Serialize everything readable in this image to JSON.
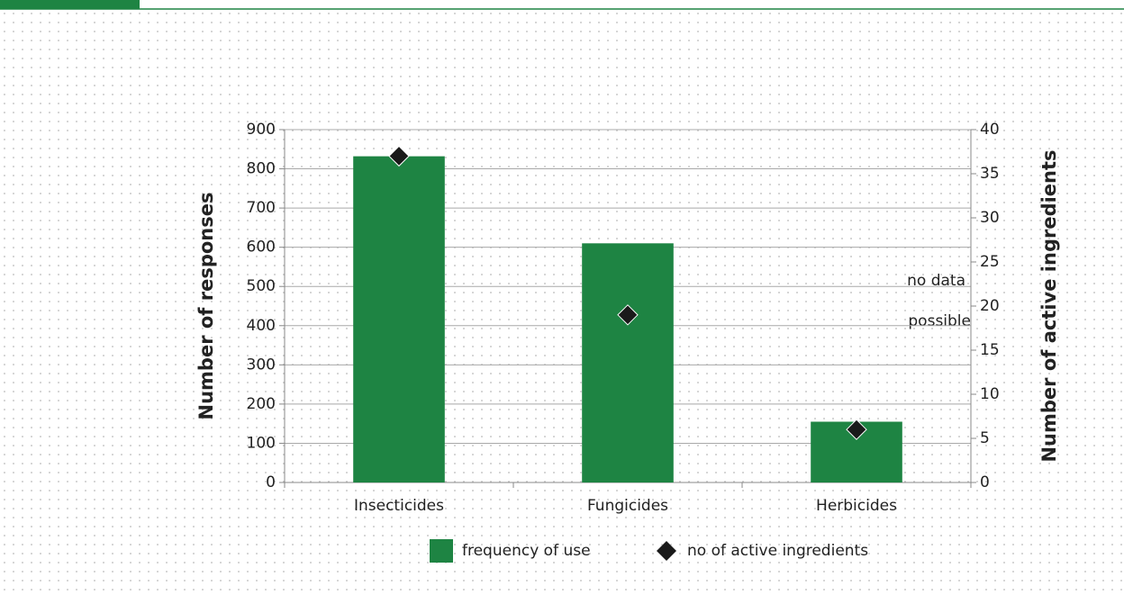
{
  "chart_data": {
    "type": "bar",
    "categories": [
      "Insecticides",
      "Fungicides",
      "Herbicides"
    ],
    "series": [
      {
        "name": "frequency of use",
        "color": "#1e8443",
        "values": [
          832,
          610,
          155
        ]
      },
      {
        "name": "no of active ingredients",
        "color": "#1a1a1a",
        "values": [
          37,
          19,
          6
        ],
        "axis": "y2",
        "type": "scatter"
      }
    ],
    "ylabel": "Number of responses",
    "y2label": "Number of active ingredients",
    "ylim": [
      0,
      900
    ],
    "yticks": [
      0,
      100,
      200,
      300,
      400,
      500,
      600,
      700,
      800,
      900
    ],
    "y2lim": [
      0,
      40
    ],
    "y2ticks": [
      0,
      5,
      10,
      15,
      20,
      25,
      30,
      35,
      40
    ],
    "annotations": [
      "no data",
      "possible"
    ],
    "grid": true,
    "legend": "bottom"
  }
}
